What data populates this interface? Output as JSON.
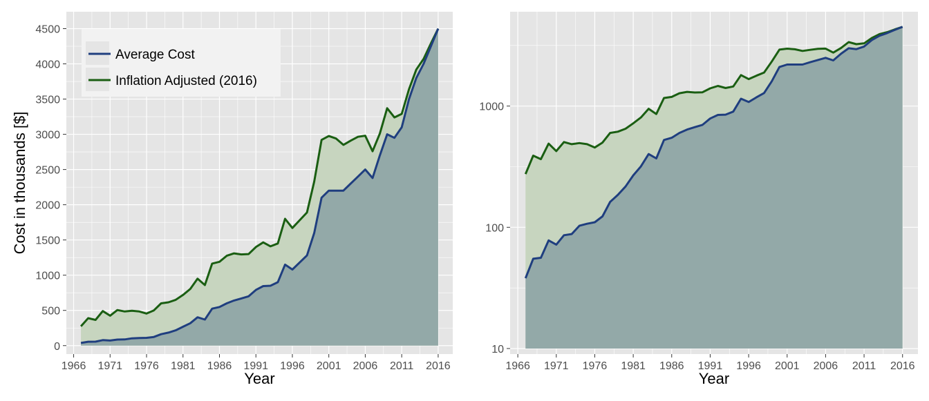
{
  "colors": {
    "panel_bg": "#E5E5E5",
    "grid": "#FFFFFF",
    "average_cost": "#1F3E7F",
    "inflation_adjusted": "#1A5E12",
    "fill_inflation": "#C7D5BF",
    "fill_average": "#93A9A8"
  },
  "chart_data": [
    {
      "type": "area",
      "panel": "left",
      "scale": "linear",
      "xlabel": "Year",
      "ylabel": "Cost in thousands [$]",
      "xlim": [
        1965,
        2018
      ],
      "ylim": [
        -120,
        4740
      ],
      "x_ticks": [
        1966,
        1971,
        1976,
        1981,
        1986,
        1991,
        1996,
        2001,
        2006,
        2011,
        2016
      ],
      "y_ticks": [
        0,
        500,
        1000,
        1500,
        2000,
        2500,
        3000,
        3500,
        4000,
        4500
      ],
      "grid": true,
      "legend": {
        "position": "top-left",
        "entries": [
          "Average Cost",
          "Inflation Adjusted (2016)"
        ]
      },
      "x": [
        1967,
        1968,
        1969,
        1970,
        1971,
        1972,
        1973,
        1974,
        1975,
        1976,
        1977,
        1978,
        1979,
        1980,
        1981,
        1982,
        1983,
        1984,
        1985,
        1986,
        1987,
        1988,
        1989,
        1990,
        1991,
        1992,
        1993,
        1994,
        1995,
        1996,
        1997,
        1998,
        1999,
        2000,
        2001,
        2002,
        2003,
        2004,
        2005,
        2006,
        2007,
        2008,
        2009,
        2010,
        2011,
        2012,
        2013,
        2014,
        2015,
        2016
      ],
      "series": [
        {
          "name": "Average Cost",
          "values": [
            38,
            55,
            56,
            78,
            72,
            86,
            88,
            103,
            107,
            110,
            123,
            162,
            185,
            217,
            268,
            318,
            402,
            370,
            525,
            548,
            600,
            640,
            670,
            700,
            790,
            845,
            850,
            900,
            1150,
            1080,
            1180,
            1280,
            1600,
            2100,
            2200,
            2200,
            2200,
            2300,
            2400,
            2500,
            2380,
            2700,
            3000,
            2950,
            3100,
            3500,
            3800,
            4000,
            4250,
            4500
          ]
        },
        {
          "name": "Inflation Adjusted (2016)",
          "values": [
            275,
            390,
            365,
            490,
            425,
            505,
            485,
            495,
            485,
            455,
            500,
            600,
            615,
            650,
            720,
            805,
            950,
            860,
            1165,
            1190,
            1275,
            1310,
            1295,
            1300,
            1400,
            1465,
            1410,
            1450,
            1800,
            1670,
            1780,
            1890,
            2330,
            2920,
            2975,
            2940,
            2850,
            2910,
            2965,
            2980,
            2760,
            3010,
            3370,
            3240,
            3290,
            3640,
            3920,
            4070,
            4290,
            4500
          ]
        }
      ]
    },
    {
      "type": "area",
      "panel": "right",
      "scale": "log10",
      "xlabel": "Year",
      "ylabel": "",
      "xlim": [
        1965,
        2018
      ],
      "ylim": [
        9,
        6000
      ],
      "x_ticks": [
        1966,
        1971,
        1976,
        1981,
        1986,
        1991,
        1996,
        2001,
        2006,
        2011,
        2016
      ],
      "y_ticks": [
        10,
        100,
        1000
      ],
      "grid": true,
      "x": [
        1967,
        1968,
        1969,
        1970,
        1971,
        1972,
        1973,
        1974,
        1975,
        1976,
        1977,
        1978,
        1979,
        1980,
        1981,
        1982,
        1983,
        1984,
        1985,
        1986,
        1987,
        1988,
        1989,
        1990,
        1991,
        1992,
        1993,
        1994,
        1995,
        1996,
        1997,
        1998,
        1999,
        2000,
        2001,
        2002,
        2003,
        2004,
        2005,
        2006,
        2007,
        2008,
        2009,
        2010,
        2011,
        2012,
        2013,
        2014,
        2015,
        2016
      ],
      "series": [
        {
          "name": "Average Cost",
          "values": [
            38,
            55,
            56,
            78,
            72,
            86,
            88,
            103,
            107,
            110,
            123,
            162,
            185,
            217,
            268,
            318,
            402,
            370,
            525,
            548,
            600,
            640,
            670,
            700,
            790,
            845,
            850,
            900,
            1150,
            1080,
            1180,
            1280,
            1600,
            2100,
            2200,
            2200,
            2200,
            2300,
            2400,
            2500,
            2380,
            2700,
            3000,
            2950,
            3100,
            3500,
            3800,
            4000,
            4250,
            4500
          ]
        },
        {
          "name": "Inflation Adjusted (2016)",
          "values": [
            275,
            390,
            365,
            490,
            425,
            505,
            485,
            495,
            485,
            455,
            500,
            600,
            615,
            650,
            720,
            805,
            950,
            860,
            1165,
            1190,
            1275,
            1310,
            1295,
            1300,
            1400,
            1465,
            1410,
            1450,
            1800,
            1670,
            1780,
            1890,
            2330,
            2920,
            2975,
            2940,
            2850,
            2910,
            2965,
            2980,
            2760,
            3010,
            3370,
            3240,
            3290,
            3640,
            3920,
            4070,
            4290,
            4500
          ]
        }
      ]
    }
  ]
}
